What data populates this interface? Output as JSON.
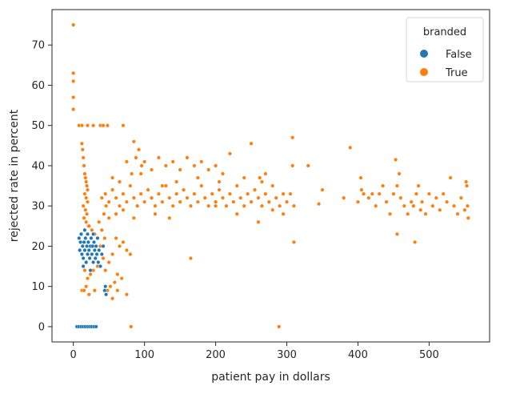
{
  "chart_data": {
    "type": "scatter",
    "xlabel": "patient pay in dollars",
    "ylabel": "rejected rate in percent",
    "xlim": [
      -30,
      585
    ],
    "ylim": [
      -3.8,
      78.8
    ],
    "xticks": [
      0,
      100,
      200,
      300,
      400,
      500
    ],
    "yticks": [
      0,
      10,
      20,
      30,
      40,
      50,
      60,
      70
    ],
    "xtick_labels": [
      "0",
      "100",
      "200",
      "300",
      "400",
      "500"
    ],
    "ytick_labels": [
      "0",
      "10",
      "20",
      "30",
      "40",
      "50",
      "60",
      "70"
    ],
    "grid": false,
    "legend": {
      "title": "branded",
      "placement": "top-right",
      "entries": [
        {
          "label": "False",
          "color": "#1f77b4"
        },
        {
          "label": "True",
          "color": "#ff7f0e"
        }
      ]
    },
    "series": [
      {
        "name": "False",
        "color": "#1f77b4",
        "points": [
          [
            5,
            0
          ],
          [
            8,
            0
          ],
          [
            11,
            0
          ],
          [
            14,
            0
          ],
          [
            17,
            0
          ],
          [
            20,
            0
          ],
          [
            23,
            0
          ],
          [
            26,
            0
          ],
          [
            29,
            0
          ],
          [
            32,
            0
          ],
          [
            8,
            22
          ],
          [
            9,
            19
          ],
          [
            10,
            21
          ],
          [
            11,
            23
          ],
          [
            12,
            18
          ],
          [
            13,
            20
          ],
          [
            14,
            17
          ],
          [
            15,
            21
          ],
          [
            16,
            19
          ],
          [
            17,
            22
          ],
          [
            18,
            16
          ],
          [
            19,
            20
          ],
          [
            20,
            18
          ],
          [
            21,
            21
          ],
          [
            22,
            19
          ],
          [
            23,
            17
          ],
          [
            24,
            20
          ],
          [
            25,
            22
          ],
          [
            26,
            18
          ],
          [
            27,
            20
          ],
          [
            28,
            16
          ],
          [
            29,
            21
          ],
          [
            30,
            19
          ],
          [
            31,
            17
          ],
          [
            32,
            20
          ],
          [
            33,
            18
          ],
          [
            34,
            22
          ],
          [
            36,
            19
          ],
          [
            38,
            15
          ],
          [
            40,
            18
          ],
          [
            42,
            20
          ],
          [
            44,
            9
          ],
          [
            45,
            10
          ],
          [
            46,
            8
          ],
          [
            14,
            15
          ],
          [
            16,
            24
          ],
          [
            20,
            23
          ],
          [
            24,
            14
          ],
          [
            28,
            23
          ],
          [
            35,
            16
          ]
        ]
      },
      {
        "name": "True",
        "color": "#ff7f0e",
        "points": [
          [
            0,
            75
          ],
          [
            0,
            63
          ],
          [
            0,
            61
          ],
          [
            0,
            57
          ],
          [
            0,
            54
          ],
          [
            8,
            50
          ],
          [
            12,
            50
          ],
          [
            20,
            50
          ],
          [
            28,
            50
          ],
          [
            38,
            50
          ],
          [
            42,
            50
          ],
          [
            48,
            50
          ],
          [
            70,
            50
          ],
          [
            12,
            45.5
          ],
          [
            13,
            44
          ],
          [
            14,
            42
          ],
          [
            15,
            40
          ],
          [
            16,
            38
          ],
          [
            17,
            37
          ],
          [
            18,
            36
          ],
          [
            19,
            35
          ],
          [
            20,
            34
          ],
          [
            16,
            33
          ],
          [
            18,
            32
          ],
          [
            20,
            31
          ],
          [
            14,
            30
          ],
          [
            17,
            29
          ],
          [
            19,
            28
          ],
          [
            15,
            27
          ],
          [
            18,
            26
          ],
          [
            21,
            25
          ],
          [
            12,
            9
          ],
          [
            15,
            9
          ],
          [
            22,
            8
          ],
          [
            30,
            9
          ],
          [
            48,
            9
          ],
          [
            55,
            7
          ],
          [
            62,
            9
          ],
          [
            75,
            8
          ],
          [
            81,
            0
          ],
          [
            22,
            0
          ],
          [
            25,
            0
          ],
          [
            28,
            0
          ],
          [
            289,
            0
          ],
          [
            60,
            22
          ],
          [
            65,
            20
          ],
          [
            70,
            21
          ],
          [
            75,
            19
          ],
          [
            80,
            18
          ],
          [
            55,
            18
          ],
          [
            50,
            16
          ],
          [
            45,
            14
          ],
          [
            62,
            13
          ],
          [
            68,
            12
          ],
          [
            58,
            11
          ],
          [
            52,
            10
          ],
          [
            44,
            22
          ],
          [
            40,
            24
          ],
          [
            36,
            26
          ],
          [
            30,
            23
          ],
          [
            26,
            24
          ],
          [
            22,
            25
          ],
          [
            38,
            20
          ],
          [
            42,
            17
          ],
          [
            34,
            15
          ],
          [
            28,
            14
          ],
          [
            24,
            13
          ],
          [
            20,
            12
          ],
          [
            18,
            10
          ],
          [
            16,
            14
          ],
          [
            40,
            32
          ],
          [
            45,
            33
          ],
          [
            50,
            31
          ],
          [
            55,
            34
          ],
          [
            60,
            32
          ],
          [
            65,
            30
          ],
          [
            70,
            33
          ],
          [
            75,
            31
          ],
          [
            80,
            35
          ],
          [
            85,
            32
          ],
          [
            90,
            30
          ],
          [
            95,
            33
          ],
          [
            100,
            31
          ],
          [
            105,
            34
          ],
          [
            110,
            32
          ],
          [
            115,
            30
          ],
          [
            120,
            33
          ],
          [
            125,
            31
          ],
          [
            130,
            35
          ],
          [
            135,
            32
          ],
          [
            140,
            30
          ],
          [
            145,
            33
          ],
          [
            150,
            31
          ],
          [
            155,
            34
          ],
          [
            160,
            32
          ],
          [
            165,
            30
          ],
          [
            170,
            33
          ],
          [
            175,
            31
          ],
          [
            180,
            35
          ],
          [
            185,
            32
          ],
          [
            190,
            30
          ],
          [
            195,
            33
          ],
          [
            200,
            31
          ],
          [
            205,
            34
          ],
          [
            210,
            32
          ],
          [
            215,
            30
          ],
          [
            220,
            33
          ],
          [
            225,
            31
          ],
          [
            230,
            35
          ],
          [
            235,
            32
          ],
          [
            240,
            30
          ],
          [
            245,
            33
          ],
          [
            250,
            31
          ],
          [
            255,
            34
          ],
          [
            260,
            32
          ],
          [
            265,
            30
          ],
          [
            270,
            33
          ],
          [
            275,
            31
          ],
          [
            280,
            29
          ],
          [
            285,
            32
          ],
          [
            290,
            30
          ],
          [
            295,
            28
          ],
          [
            300,
            31
          ],
          [
            305,
            33
          ],
          [
            310,
            30
          ],
          [
            82,
            38
          ],
          [
            85,
            46
          ],
          [
            88,
            42
          ],
          [
            92,
            44
          ],
          [
            96,
            40
          ],
          [
            100,
            41
          ],
          [
            110,
            39
          ],
          [
            120,
            42
          ],
          [
            130,
            40
          ],
          [
            140,
            41
          ],
          [
            150,
            39
          ],
          [
            160,
            42
          ],
          [
            170,
            40
          ],
          [
            180,
            41
          ],
          [
            190,
            39
          ],
          [
            200,
            40
          ],
          [
            210,
            38
          ],
          [
            220,
            43
          ],
          [
            250,
            45.5
          ],
          [
            262,
            37
          ],
          [
            270,
            38
          ],
          [
            280,
            35
          ],
          [
            308,
            47
          ],
          [
            308,
            40
          ],
          [
            330,
            40
          ],
          [
            345,
            30.5
          ],
          [
            389,
            44.5
          ],
          [
            404,
            37
          ],
          [
            405,
            34
          ],
          [
            408,
            33
          ],
          [
            415,
            32
          ],
          [
            420,
            33
          ],
          [
            425,
            30
          ],
          [
            430,
            33
          ],
          [
            435,
            35
          ],
          [
            440,
            31
          ],
          [
            445,
            28
          ],
          [
            450,
            33
          ],
          [
            453,
            41.5
          ],
          [
            455,
            35
          ],
          [
            458,
            38
          ],
          [
            460,
            32
          ],
          [
            465,
            30
          ],
          [
            470,
            28
          ],
          [
            475,
            31
          ],
          [
            478,
            30
          ],
          [
            480,
            21
          ],
          [
            482,
            33
          ],
          [
            485,
            35
          ],
          [
            488,
            29
          ],
          [
            490,
            31
          ],
          [
            495,
            28
          ],
          [
            500,
            33
          ],
          [
            505,
            30
          ],
          [
            510,
            32
          ],
          [
            515,
            29
          ],
          [
            520,
            33
          ],
          [
            525,
            31
          ],
          [
            530,
            37
          ],
          [
            535,
            30
          ],
          [
            540,
            28
          ],
          [
            545,
            32
          ],
          [
            550,
            29
          ],
          [
            552,
            36
          ],
          [
            553,
            35
          ],
          [
            554,
            30
          ],
          [
            555,
            27
          ],
          [
            455,
            23
          ],
          [
            310,
            21
          ],
          [
            165,
            17
          ],
          [
            200,
            30
          ],
          [
            230,
            28
          ],
          [
            260,
            26
          ],
          [
            135,
            27
          ],
          [
            115,
            28
          ],
          [
            85,
            27
          ],
          [
            70,
            29
          ],
          [
            60,
            28
          ],
          [
            50,
            27
          ],
          [
            46,
            30
          ],
          [
            43,
            28
          ],
          [
            55,
            37
          ],
          [
            65,
            36
          ],
          [
            75,
            41
          ],
          [
            95,
            38
          ],
          [
            125,
            35
          ],
          [
            145,
            36
          ],
          [
            175,
            37
          ],
          [
            205,
            36
          ],
          [
            240,
            37
          ],
          [
            265,
            36
          ],
          [
            295,
            33
          ],
          [
            350,
            34
          ],
          [
            380,
            32
          ],
          [
            400,
            31
          ]
        ]
      }
    ]
  }
}
